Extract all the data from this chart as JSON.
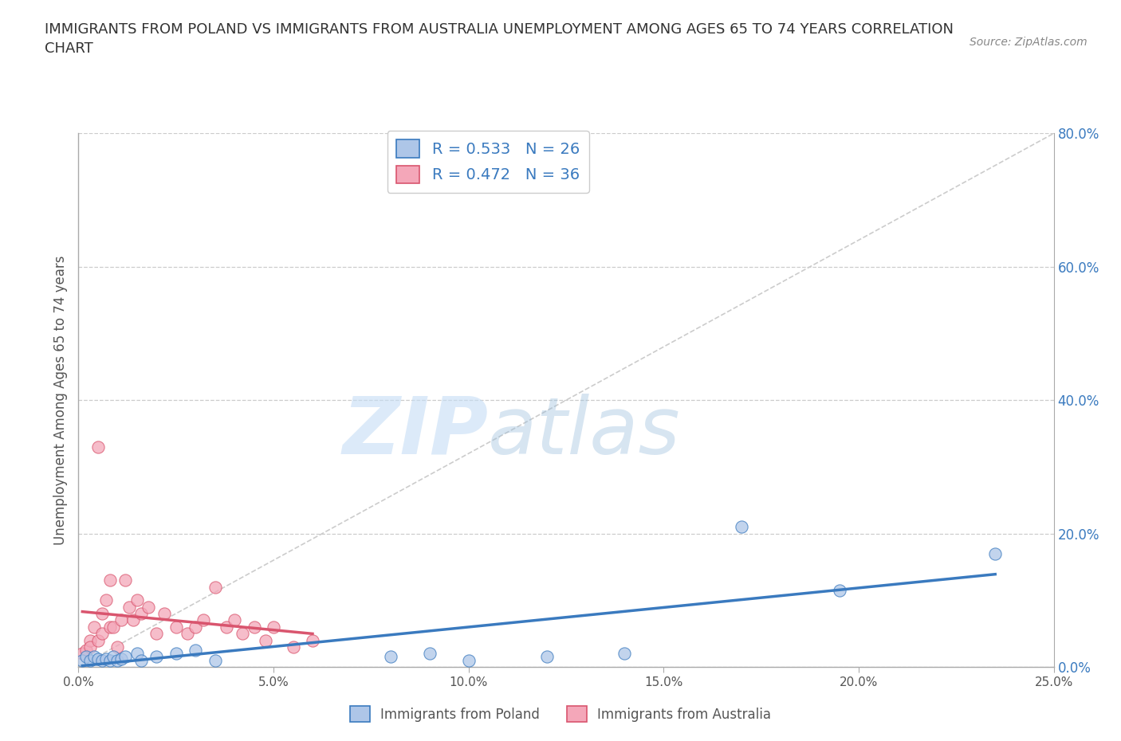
{
  "title": "IMMIGRANTS FROM POLAND VS IMMIGRANTS FROM AUSTRALIA UNEMPLOYMENT AMONG AGES 65 TO 74 YEARS CORRELATION\nCHART",
  "source": "Source: ZipAtlas.com",
  "ylabel": "Unemployment Among Ages 65 to 74 years",
  "xlim": [
    0.0,
    0.25
  ],
  "ylim": [
    0.0,
    0.8
  ],
  "xticks": [
    0.0,
    0.05,
    0.1,
    0.15,
    0.2,
    0.25
  ],
  "yticks": [
    0.0,
    0.2,
    0.4,
    0.6,
    0.8
  ],
  "xticklabels": [
    "0.0%",
    "5.0%",
    "10.0%",
    "15.0%",
    "20.0%",
    "25.0%"
  ],
  "yticklabels_right": [
    "0.0%",
    "20.0%",
    "40.0%",
    "60.0%",
    "80.0%"
  ],
  "watermark_zip": "ZIP",
  "watermark_atlas": "atlas",
  "poland_color": "#aec6e8",
  "australia_color": "#f4a7b9",
  "poland_line_color": "#3a7abf",
  "australia_line_color": "#d9556e",
  "poland_R": 0.533,
  "poland_N": 26,
  "australia_R": 0.472,
  "australia_N": 36,
  "legend_label_poland": "Immigrants from Poland",
  "legend_label_australia": "Immigrants from Australia",
  "poland_x": [
    0.001,
    0.002,
    0.003,
    0.004,
    0.005,
    0.006,
    0.007,
    0.008,
    0.009,
    0.01,
    0.011,
    0.012,
    0.015,
    0.016,
    0.02,
    0.025,
    0.03,
    0.035,
    0.08,
    0.09,
    0.1,
    0.12,
    0.14,
    0.17,
    0.195,
    0.235
  ],
  "poland_y": [
    0.01,
    0.015,
    0.01,
    0.015,
    0.012,
    0.01,
    0.012,
    0.01,
    0.015,
    0.01,
    0.012,
    0.015,
    0.02,
    0.01,
    0.015,
    0.02,
    0.025,
    0.01,
    0.015,
    0.02,
    0.01,
    0.015,
    0.02,
    0.21,
    0.115,
    0.17
  ],
  "australia_x": [
    0.001,
    0.002,
    0.003,
    0.003,
    0.004,
    0.005,
    0.005,
    0.006,
    0.006,
    0.007,
    0.008,
    0.008,
    0.009,
    0.01,
    0.011,
    0.012,
    0.013,
    0.014,
    0.015,
    0.016,
    0.018,
    0.02,
    0.022,
    0.025,
    0.028,
    0.03,
    0.032,
    0.035,
    0.038,
    0.04,
    0.042,
    0.045,
    0.048,
    0.05,
    0.055,
    0.06
  ],
  "australia_y": [
    0.02,
    0.025,
    0.04,
    0.03,
    0.06,
    0.33,
    0.04,
    0.08,
    0.05,
    0.1,
    0.06,
    0.13,
    0.06,
    0.03,
    0.07,
    0.13,
    0.09,
    0.07,
    0.1,
    0.08,
    0.09,
    0.05,
    0.08,
    0.06,
    0.05,
    0.06,
    0.07,
    0.12,
    0.06,
    0.07,
    0.05,
    0.06,
    0.04,
    0.06,
    0.03,
    0.04
  ],
  "background_color": "#ffffff",
  "grid_color": "#cccccc"
}
